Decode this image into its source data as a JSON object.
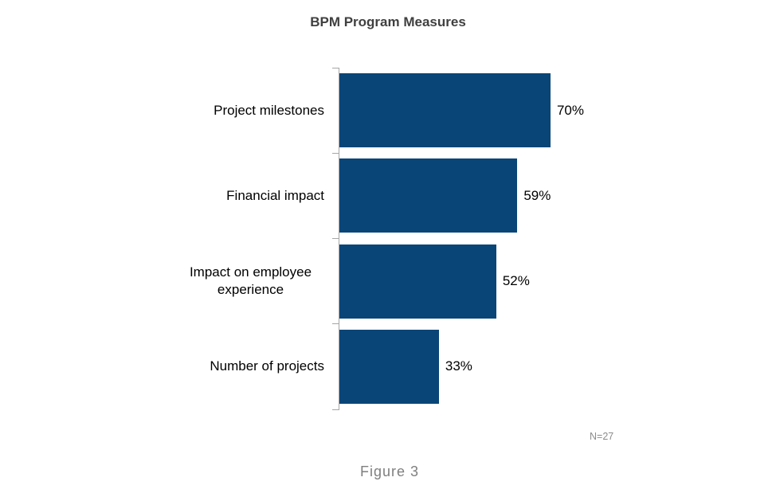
{
  "page": {
    "background": "#FFFFFF"
  },
  "chart_data": {
    "type": "bar",
    "orientation": "horizontal",
    "title": "BPM Program Measures",
    "categories": [
      "Project milestones",
      "Financial impact",
      "Impact on employee experience",
      "Number of projects"
    ],
    "values": [
      70,
      59,
      52,
      33
    ],
    "value_labels": [
      "70%",
      "59%",
      "52%",
      "33%"
    ],
    "unit": "%",
    "xlim": [
      0,
      80
    ],
    "grid": false,
    "legend": false,
    "data_label_position": "outside-end",
    "bar_color": "#0A4577",
    "axis_color": "#A6A6A6"
  },
  "annotations": {
    "sample_size": "N=27",
    "figure_caption": "Figure 3"
  },
  "colors": {
    "bar": "#0A4577",
    "title_text": "#404040",
    "label_text": "#000000",
    "muted_text": "#8C8C8C",
    "caption_text": "#7F7F7F",
    "axis": "#A6A6A6"
  }
}
